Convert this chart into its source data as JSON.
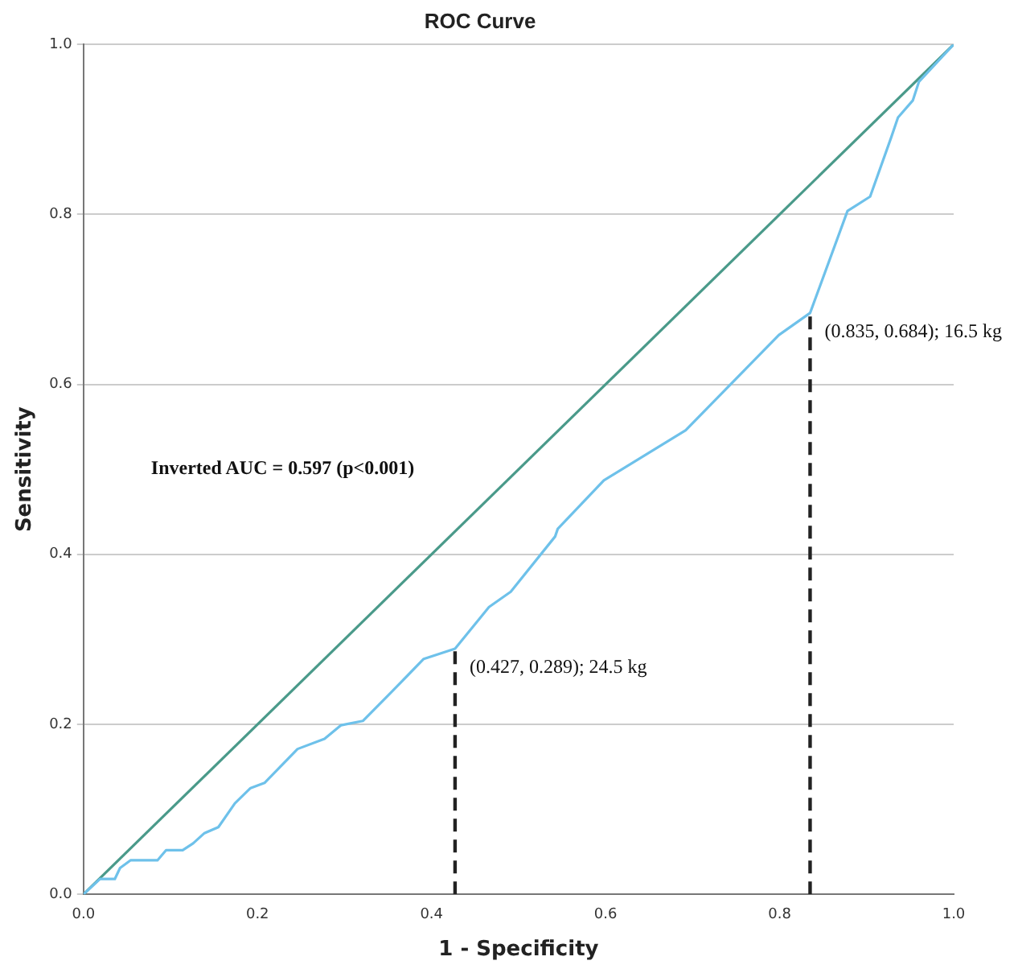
{
  "chart_data": {
    "type": "line",
    "title": "ROC Curve",
    "xlabel": "1 - Specificity",
    "ylabel": "Sensitivity",
    "xlim": [
      0,
      1
    ],
    "ylim": [
      0,
      1
    ],
    "xticks": [
      {
        "value": 0,
        "label": "0.0"
      },
      0.2,
      0.4,
      0.6,
      0.8,
      {
        "value": 1,
        "label": "1.0"
      }
    ],
    "yticks": [
      {
        "value": 0,
        "label": "0.0"
      },
      0.2,
      0.4,
      0.6,
      0.8,
      {
        "value": 1,
        "label": "1.0"
      }
    ],
    "grid": "y",
    "legend": false,
    "marker": "none",
    "series": [
      {
        "color": "#6ec1ea",
        "line_style": "solid",
        "x": [
          0,
          0.019,
          0.036,
          0.042,
          0.054,
          0.085,
          0.095,
          0.114,
          0.126,
          0.139,
          0.155,
          0.174,
          0.192,
          0.208,
          0.246,
          0.277,
          0.296,
          0.321,
          0.353,
          0.391,
          0.427,
          0.466,
          0.491,
          0.542,
          0.545,
          0.598,
          0.692,
          0.799,
          0.835,
          0.878,
          0.904,
          0.928,
          0.936,
          0.953,
          0.96,
          1
        ],
        "values": [
          0,
          0.018,
          0.018,
          0.031,
          0.04,
          0.04,
          0.052,
          0.052,
          0.06,
          0.072,
          0.079,
          0.107,
          0.125,
          0.131,
          0.171,
          0.183,
          0.199,
          0.204,
          0.237,
          0.277,
          0.289,
          0.338,
          0.356,
          0.421,
          0.43,
          0.487,
          0.546,
          0.658,
          0.684,
          0.804,
          0.821,
          0.89,
          0.914,
          0.934,
          0.956,
          1
        ]
      },
      {
        "color": "#4a9a8a",
        "line_style": "solid",
        "x": [
          0,
          1
        ],
        "values": [
          0,
          1
        ]
      },
      {
        "color": "#222222",
        "line_style": "dashed",
        "x": [
          0.427,
          0.427
        ],
        "values": [
          0,
          0.289
        ]
      },
      {
        "color": "#222222",
        "line_style": "dashed",
        "x": [
          0.835,
          0.835
        ],
        "values": [
          0,
          0.684
        ]
      }
    ],
    "annotations": [
      "Inverted AUC = 0.597 (p<0.001)",
      {
        "text": "(0.427, 0.289); 24.5 kg",
        "x": 0.427,
        "y": 0.289
      },
      {
        "text": "(0.835, 0.684); 16.5 kg",
        "x": 0.835,
        "y": 0.684
      }
    ]
  }
}
